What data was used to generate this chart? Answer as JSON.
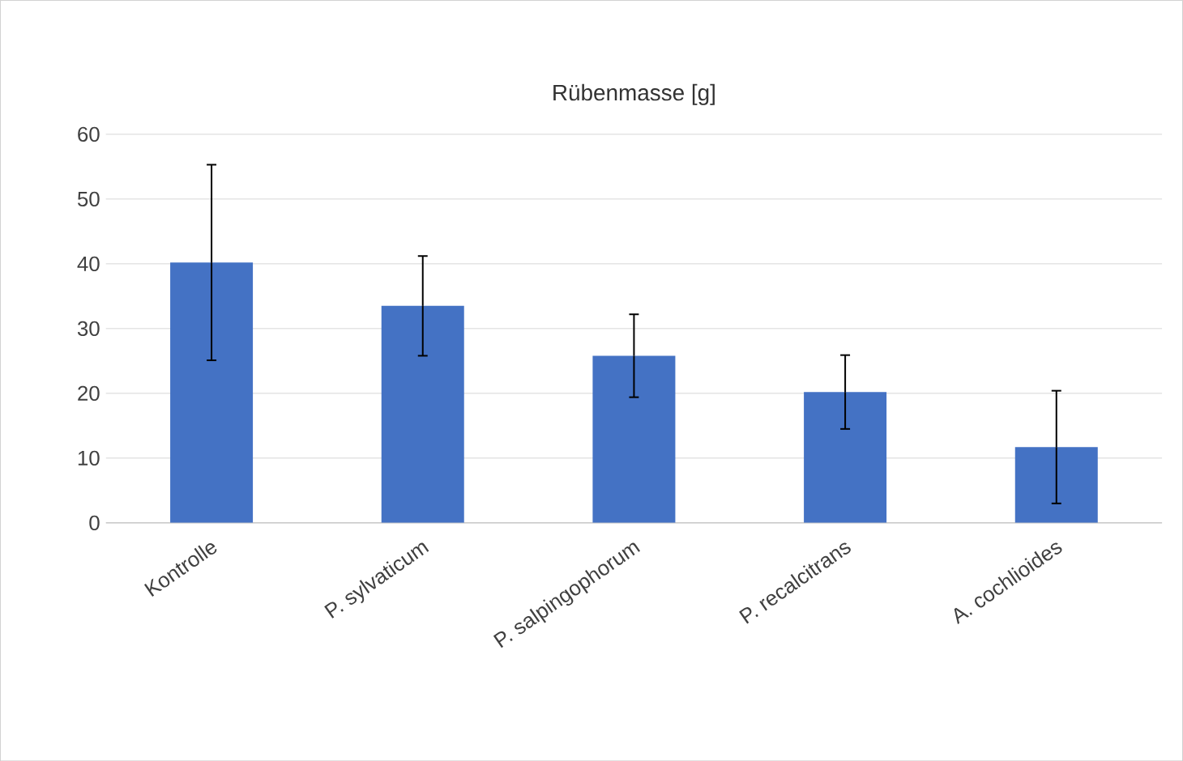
{
  "chart_data": {
    "type": "bar",
    "title": "Rübenmasse [g]",
    "categories": [
      "Kontrolle",
      "P. sylvaticum",
      "P. salpingophorum",
      "P. recalcitrans",
      "A. cochlioides"
    ],
    "values": [
      40.2,
      33.5,
      25.8,
      20.2,
      11.7
    ],
    "errors": [
      15.1,
      7.7,
      6.4,
      5.7,
      8.7
    ],
    "color": "#4472c4",
    "ylim": [
      0,
      60
    ],
    "yticks": [
      0,
      10,
      20,
      30,
      40,
      50,
      60
    ],
    "grid": "y"
  }
}
